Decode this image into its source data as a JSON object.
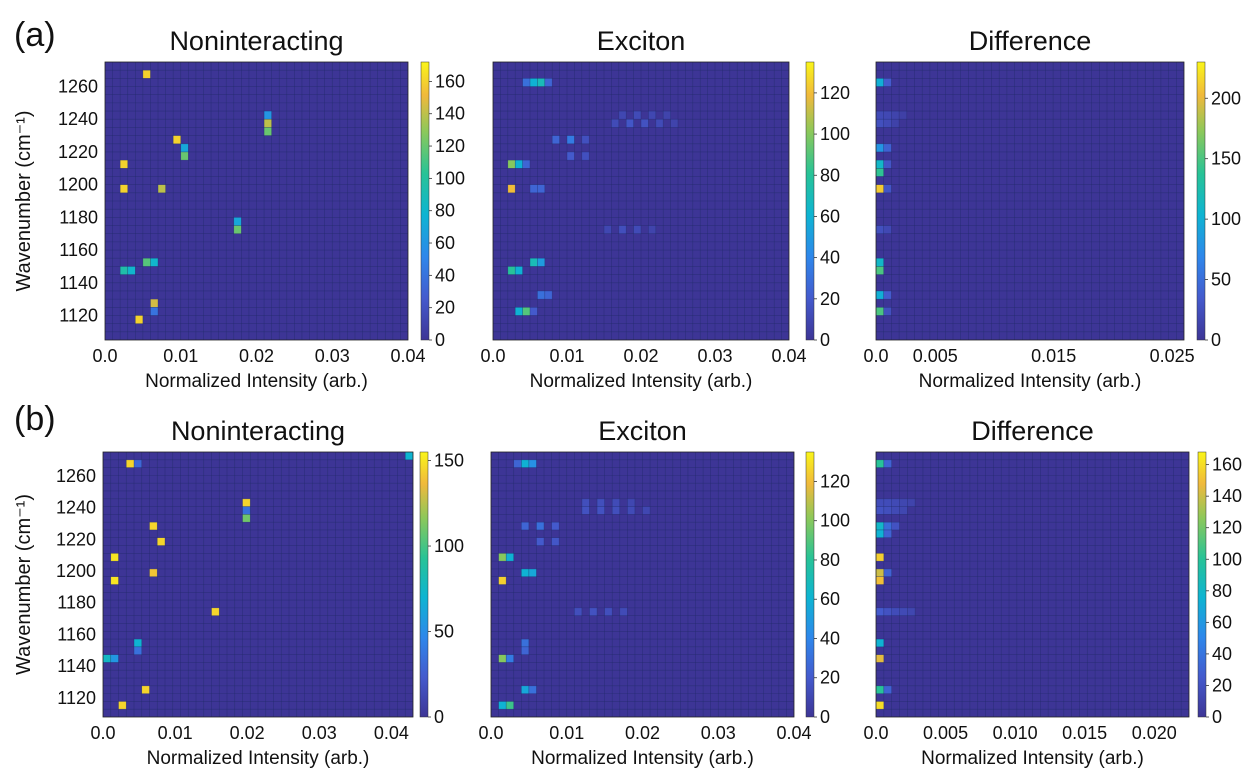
{
  "panel_labels": [
    "(a)",
    "(b)"
  ],
  "chart_data": [
    {
      "type": "heatmap",
      "panel": "(a)",
      "title": "Noninteracting",
      "xlabel": "Normalized Intensity (arb.)",
      "ylabel": "Wavenumber (cm⁻¹)",
      "xlim": [
        0,
        0.04
      ],
      "ylim": [
        1105,
        1275
      ],
      "xticks": [
        0,
        0.01,
        0.02,
        0.03,
        0.04
      ],
      "xticklabels": [
        "0.0",
        "0.01",
        "0.02",
        "0.03",
        "0.04"
      ],
      "yticks": [
        1120,
        1140,
        1160,
        1180,
        1200,
        1220,
        1240,
        1260
      ],
      "yticklabels": [
        "1120",
        "1140",
        "1160",
        "1180",
        "1200",
        "1220",
        "1240",
        "1260"
      ],
      "bins_x": 40,
      "bins_y": 34,
      "background": 0,
      "clim": [
        0,
        172
      ],
      "cbar_ticks": [
        0,
        20,
        40,
        60,
        80,
        100,
        120,
        140,
        160
      ],
      "cbar_ticklabels": [
        "0",
        "20",
        "40",
        "60",
        "80",
        "100",
        "120",
        "140",
        "160"
      ],
      "cells": [
        {
          "x": 0.0055,
          "y": 1270,
          "v": 160
        },
        {
          "x": 0.0215,
          "y": 1245,
          "v": 60
        },
        {
          "x": 0.0215,
          "y": 1240,
          "v": 140
        },
        {
          "x": 0.0215,
          "y": 1235,
          "v": 120
        },
        {
          "x": 0.0095,
          "y": 1230,
          "v": 160
        },
        {
          "x": 0.0105,
          "y": 1225,
          "v": 70
        },
        {
          "x": 0.0105,
          "y": 1220,
          "v": 120
        },
        {
          "x": 0.0025,
          "y": 1215,
          "v": 160
        },
        {
          "x": 0.0025,
          "y": 1200,
          "v": 160
        },
        {
          "x": 0.0075,
          "y": 1200,
          "v": 140
        },
        {
          "x": 0.0175,
          "y": 1177,
          "v": 70
        },
        {
          "x": 0.0175,
          "y": 1172,
          "v": 120
        },
        {
          "x": 0.0055,
          "y": 1155,
          "v": 115
        },
        {
          "x": 0.0065,
          "y": 1155,
          "v": 80
        },
        {
          "x": 0.0025,
          "y": 1150,
          "v": 95
        },
        {
          "x": 0.0035,
          "y": 1150,
          "v": 80
        },
        {
          "x": 0.0065,
          "y": 1130,
          "v": 145
        },
        {
          "x": 0.0065,
          "y": 1125,
          "v": 40
        },
        {
          "x": 0.0045,
          "y": 1120,
          "v": 160
        }
      ]
    },
    {
      "type": "heatmap",
      "panel": "(a)",
      "title": "Exciton",
      "xlabel": "Normalized Intensity (arb.)",
      "xlim": [
        0,
        0.04
      ],
      "ylim": [
        1105,
        1275
      ],
      "xticks": [
        0,
        0.01,
        0.02,
        0.03,
        0.04
      ],
      "xticklabels": [
        "0.0",
        "0.01",
        "0.02",
        "0.03",
        "0.04"
      ],
      "bins_x": 40,
      "bins_y": 34,
      "background": 0,
      "clim": [
        0,
        135
      ],
      "cbar_ticks": [
        0,
        20,
        40,
        60,
        80,
        100,
        120
      ],
      "cbar_ticklabels": [
        "0",
        "20",
        "40",
        "60",
        "80",
        "100",
        "120"
      ],
      "cells": [
        {
          "x": 0.0045,
          "y": 1265,
          "v": 30
        },
        {
          "x": 0.0055,
          "y": 1265,
          "v": 60
        },
        {
          "x": 0.0065,
          "y": 1265,
          "v": 70
        },
        {
          "x": 0.0075,
          "y": 1265,
          "v": 25
        },
        {
          "x": 0.0175,
          "y": 1245,
          "v": 10
        },
        {
          "x": 0.0195,
          "y": 1245,
          "v": 12
        },
        {
          "x": 0.0215,
          "y": 1245,
          "v": 10
        },
        {
          "x": 0.0235,
          "y": 1245,
          "v": 8
        },
        {
          "x": 0.0165,
          "y": 1240,
          "v": 12
        },
        {
          "x": 0.0185,
          "y": 1240,
          "v": 18
        },
        {
          "x": 0.0205,
          "y": 1240,
          "v": 16
        },
        {
          "x": 0.0225,
          "y": 1240,
          "v": 12
        },
        {
          "x": 0.0245,
          "y": 1240,
          "v": 8
        },
        {
          "x": 0.0105,
          "y": 1230,
          "v": 35
        },
        {
          "x": 0.0085,
          "y": 1230,
          "v": 25
        },
        {
          "x": 0.0125,
          "y": 1230,
          "v": 15
        },
        {
          "x": 0.0105,
          "y": 1220,
          "v": 20
        },
        {
          "x": 0.0125,
          "y": 1220,
          "v": 15
        },
        {
          "x": 0.0025,
          "y": 1215,
          "v": 100
        },
        {
          "x": 0.0035,
          "y": 1215,
          "v": 60
        },
        {
          "x": 0.0045,
          "y": 1215,
          "v": 25
        },
        {
          "x": 0.0025,
          "y": 1200,
          "v": 120
        },
        {
          "x": 0.0055,
          "y": 1200,
          "v": 25
        },
        {
          "x": 0.0065,
          "y": 1200,
          "v": 25
        },
        {
          "x": 0.0155,
          "y": 1175,
          "v": 10
        },
        {
          "x": 0.0175,
          "y": 1175,
          "v": 14
        },
        {
          "x": 0.0195,
          "y": 1175,
          "v": 12
        },
        {
          "x": 0.0215,
          "y": 1175,
          "v": 8
        },
        {
          "x": 0.0025,
          "y": 1150,
          "v": 80
        },
        {
          "x": 0.0035,
          "y": 1150,
          "v": 60
        },
        {
          "x": 0.0055,
          "y": 1155,
          "v": 70
        },
        {
          "x": 0.0065,
          "y": 1155,
          "v": 50
        },
        {
          "x": 0.0065,
          "y": 1135,
          "v": 30
        },
        {
          "x": 0.0075,
          "y": 1135,
          "v": 25
        },
        {
          "x": 0.0035,
          "y": 1125,
          "v": 60
        },
        {
          "x": 0.0045,
          "y": 1125,
          "v": 90
        },
        {
          "x": 0.0055,
          "y": 1125,
          "v": 20
        }
      ]
    },
    {
      "type": "heatmap",
      "panel": "(a)",
      "title": "Difference",
      "xlabel": "Normalized Intensity (arb.)",
      "xlim": [
        0,
        0.026
      ],
      "ylim": [
        1105,
        1275
      ],
      "xticks": [
        0,
        0.005,
        0.015,
        0.025
      ],
      "xticklabels": [
        "0.0",
        "0.005",
        "0.015",
        "0.025"
      ],
      "bins_x": 40,
      "bins_y": 34,
      "background": 0,
      "clim": [
        0,
        230
      ],
      "cbar_ticks": [
        0,
        50,
        100,
        150,
        200
      ],
      "cbar_ticklabels": [
        "0",
        "50",
        "100",
        "150",
        "200"
      ],
      "cells": [
        {
          "x": 0.0003,
          "y": 1265,
          "v": 100
        },
        {
          "x": 0.001,
          "y": 1265,
          "v": 35
        },
        {
          "x": 0.0003,
          "y": 1245,
          "v": 20
        },
        {
          "x": 0.001,
          "y": 1245,
          "v": 18
        },
        {
          "x": 0.0016,
          "y": 1245,
          "v": 14
        },
        {
          "x": 0.0023,
          "y": 1245,
          "v": 10
        },
        {
          "x": 0.0003,
          "y": 1240,
          "v": 25
        },
        {
          "x": 0.001,
          "y": 1240,
          "v": 20
        },
        {
          "x": 0.0016,
          "y": 1240,
          "v": 12
        },
        {
          "x": 0.0003,
          "y": 1225,
          "v": 80
        },
        {
          "x": 0.001,
          "y": 1225,
          "v": 40
        },
        {
          "x": 0.0003,
          "y": 1215,
          "v": 110
        },
        {
          "x": 0.001,
          "y": 1215,
          "v": 30
        },
        {
          "x": 0.0003,
          "y": 1208,
          "v": 140
        },
        {
          "x": 0.0003,
          "y": 1200,
          "v": 210
        },
        {
          "x": 0.001,
          "y": 1200,
          "v": 30
        },
        {
          "x": 0.0003,
          "y": 1175,
          "v": 25
        },
        {
          "x": 0.001,
          "y": 1175,
          "v": 18
        },
        {
          "x": 0.0003,
          "y": 1155,
          "v": 110
        },
        {
          "x": 0.0003,
          "y": 1150,
          "v": 150
        },
        {
          "x": 0.0003,
          "y": 1135,
          "v": 100
        },
        {
          "x": 0.001,
          "y": 1135,
          "v": 35
        },
        {
          "x": 0.0003,
          "y": 1125,
          "v": 150
        },
        {
          "x": 0.001,
          "y": 1125,
          "v": 25
        }
      ]
    },
    {
      "type": "heatmap",
      "panel": "(b)",
      "title": "Noninteracting",
      "xlabel": "Normalized Intensity (arb.)",
      "ylabel": "Wavenumber (cm⁻¹)",
      "xlim": [
        0,
        0.043
      ],
      "ylim": [
        1108,
        1275
      ],
      "xticks": [
        0,
        0.01,
        0.02,
        0.03,
        0.04
      ],
      "xticklabels": [
        "0.0",
        "0.01",
        "0.02",
        "0.03",
        "0.04"
      ],
      "yticks": [
        1120,
        1140,
        1160,
        1180,
        1200,
        1220,
        1240,
        1260
      ],
      "yticklabels": [
        "1120",
        "1140",
        "1160",
        "1180",
        "1200",
        "1220",
        "1240",
        "1260"
      ],
      "bins_x": 40,
      "bins_y": 34,
      "background": 0,
      "clim": [
        0,
        155
      ],
      "cbar_ticks": [
        0,
        50,
        100,
        150
      ],
      "cbar_ticklabels": [
        "0",
        "50",
        "100",
        "150"
      ],
      "cells": [
        {
          "x": 0.0035,
          "y": 1270,
          "v": 145
        },
        {
          "x": 0.0045,
          "y": 1270,
          "v": 30
        },
        {
          "x": 0.0425,
          "y": 1273,
          "v": 70
        },
        {
          "x": 0.0195,
          "y": 1245,
          "v": 145
        },
        {
          "x": 0.0195,
          "y": 1240,
          "v": 35
        },
        {
          "x": 0.0195,
          "y": 1235,
          "v": 110
        },
        {
          "x": 0.0075,
          "y": 1230,
          "v": 145
        },
        {
          "x": 0.0085,
          "y": 1220,
          "v": 145
        },
        {
          "x": 0.0015,
          "y": 1210,
          "v": 150
        },
        {
          "x": 0.0065,
          "y": 1200,
          "v": 140
        },
        {
          "x": 0.0015,
          "y": 1195,
          "v": 150
        },
        {
          "x": 0.0155,
          "y": 1175,
          "v": 145
        },
        {
          "x": 0.0045,
          "y": 1155,
          "v": 70
        },
        {
          "x": 0.0045,
          "y": 1150,
          "v": 35
        },
        {
          "x": 0.0005,
          "y": 1145,
          "v": 75
        },
        {
          "x": 0.0015,
          "y": 1145,
          "v": 55
        },
        {
          "x": 0.0055,
          "y": 1125,
          "v": 145
        },
        {
          "x": 0.0025,
          "y": 1115,
          "v": 145
        }
      ]
    },
    {
      "type": "heatmap",
      "panel": "(b)",
      "title": "Exciton",
      "xlabel": "Normalized Intensity (arb.)",
      "xlim": [
        0,
        0.04
      ],
      "ylim": [
        1108,
        1275
      ],
      "xticks": [
        0,
        0.01,
        0.02,
        0.03,
        0.04
      ],
      "xticklabels": [
        "0.0",
        "0.01",
        "0.02",
        "0.03",
        "0.04"
      ],
      "bins_x": 40,
      "bins_y": 34,
      "background": 0,
      "clim": [
        0,
        135
      ],
      "cbar_ticks": [
        0,
        20,
        40,
        60,
        80,
        100,
        120
      ],
      "cbar_ticklabels": [
        "0",
        "20",
        "40",
        "60",
        "80",
        "100",
        "120"
      ],
      "cells": [
        {
          "x": 0.0045,
          "y": 1270,
          "v": 60
        },
        {
          "x": 0.0055,
          "y": 1270,
          "v": 45
        },
        {
          "x": 0.0035,
          "y": 1270,
          "v": 25
        },
        {
          "x": 0.0125,
          "y": 1245,
          "v": 14
        },
        {
          "x": 0.0145,
          "y": 1245,
          "v": 14
        },
        {
          "x": 0.0165,
          "y": 1245,
          "v": 12
        },
        {
          "x": 0.0185,
          "y": 1245,
          "v": 10
        },
        {
          "x": 0.0125,
          "y": 1240,
          "v": 16
        },
        {
          "x": 0.0145,
          "y": 1240,
          "v": 16
        },
        {
          "x": 0.0165,
          "y": 1240,
          "v": 14
        },
        {
          "x": 0.0185,
          "y": 1240,
          "v": 12
        },
        {
          "x": 0.0205,
          "y": 1240,
          "v": 10
        },
        {
          "x": 0.0045,
          "y": 1230,
          "v": 25
        },
        {
          "x": 0.0065,
          "y": 1230,
          "v": 30
        },
        {
          "x": 0.0085,
          "y": 1230,
          "v": 20
        },
        {
          "x": 0.0065,
          "y": 1220,
          "v": 20
        },
        {
          "x": 0.0085,
          "y": 1220,
          "v": 18
        },
        {
          "x": 0.0015,
          "y": 1210,
          "v": 100
        },
        {
          "x": 0.0025,
          "y": 1210,
          "v": 60
        },
        {
          "x": 0.0045,
          "y": 1200,
          "v": 60
        },
        {
          "x": 0.0055,
          "y": 1200,
          "v": 55
        },
        {
          "x": 0.0015,
          "y": 1195,
          "v": 125
        },
        {
          "x": 0.0115,
          "y": 1175,
          "v": 14
        },
        {
          "x": 0.0135,
          "y": 1175,
          "v": 16
        },
        {
          "x": 0.0155,
          "y": 1175,
          "v": 14
        },
        {
          "x": 0.0175,
          "y": 1175,
          "v": 12
        },
        {
          "x": 0.0045,
          "y": 1155,
          "v": 30
        },
        {
          "x": 0.0045,
          "y": 1150,
          "v": 25
        },
        {
          "x": 0.0015,
          "y": 1145,
          "v": 100
        },
        {
          "x": 0.0025,
          "y": 1145,
          "v": 35
        },
        {
          "x": 0.0045,
          "y": 1125,
          "v": 55
        },
        {
          "x": 0.0055,
          "y": 1125,
          "v": 30
        },
        {
          "x": 0.0015,
          "y": 1115,
          "v": 60
        },
        {
          "x": 0.0025,
          "y": 1115,
          "v": 85
        }
      ]
    },
    {
      "type": "heatmap",
      "panel": "(b)",
      "title": "Difference",
      "xlabel": "Normalized Intensity (arb.)",
      "xlim": [
        0,
        0.0225
      ],
      "ylim": [
        1108,
        1275
      ],
      "xticks": [
        0,
        0.005,
        0.01,
        0.015,
        0.02
      ],
      "xticklabels": [
        "0.0",
        "0.005",
        "0.010",
        "0.015",
        "0.020"
      ],
      "bins_x": 40,
      "bins_y": 34,
      "background": 0,
      "clim": [
        0,
        168
      ],
      "cbar_ticks": [
        0,
        20,
        40,
        60,
        80,
        100,
        120,
        140,
        160
      ],
      "cbar_ticklabels": [
        "0",
        "20",
        "40",
        "60",
        "80",
        "100",
        "120",
        "140",
        "160"
      ],
      "cells": [
        {
          "x": 0.0003,
          "y": 1270,
          "v": 100
        },
        {
          "x": 0.0008,
          "y": 1270,
          "v": 30
        },
        {
          "x": 0.0003,
          "y": 1245,
          "v": 16
        },
        {
          "x": 0.0008,
          "y": 1245,
          "v": 16
        },
        {
          "x": 0.0014,
          "y": 1245,
          "v": 14
        },
        {
          "x": 0.002,
          "y": 1245,
          "v": 12
        },
        {
          "x": 0.0025,
          "y": 1245,
          "v": 10
        },
        {
          "x": 0.0003,
          "y": 1240,
          "v": 20
        },
        {
          "x": 0.0008,
          "y": 1240,
          "v": 18
        },
        {
          "x": 0.0014,
          "y": 1240,
          "v": 14
        },
        {
          "x": 0.002,
          "y": 1240,
          "v": 12
        },
        {
          "x": 0.0003,
          "y": 1230,
          "v": 80
        },
        {
          "x": 0.0008,
          "y": 1230,
          "v": 35
        },
        {
          "x": 0.0014,
          "y": 1230,
          "v": 20
        },
        {
          "x": 0.0003,
          "y": 1222,
          "v": 75
        },
        {
          "x": 0.0008,
          "y": 1222,
          "v": 30
        },
        {
          "x": 0.0003,
          "y": 1210,
          "v": 155
        },
        {
          "x": 0.0003,
          "y": 1200,
          "v": 140
        },
        {
          "x": 0.0003,
          "y": 1195,
          "v": 150
        },
        {
          "x": 0.0008,
          "y": 1200,
          "v": 30
        },
        {
          "x": 0.0003,
          "y": 1175,
          "v": 25
        },
        {
          "x": 0.0008,
          "y": 1175,
          "v": 20
        },
        {
          "x": 0.0014,
          "y": 1175,
          "v": 16
        },
        {
          "x": 0.002,
          "y": 1175,
          "v": 14
        },
        {
          "x": 0.0025,
          "y": 1175,
          "v": 12
        },
        {
          "x": 0.0003,
          "y": 1155,
          "v": 75
        },
        {
          "x": 0.0003,
          "y": 1145,
          "v": 145
        },
        {
          "x": 0.0003,
          "y": 1125,
          "v": 100
        },
        {
          "x": 0.0008,
          "y": 1125,
          "v": 30
        },
        {
          "x": 0.0003,
          "y": 1115,
          "v": 160
        }
      ]
    }
  ]
}
